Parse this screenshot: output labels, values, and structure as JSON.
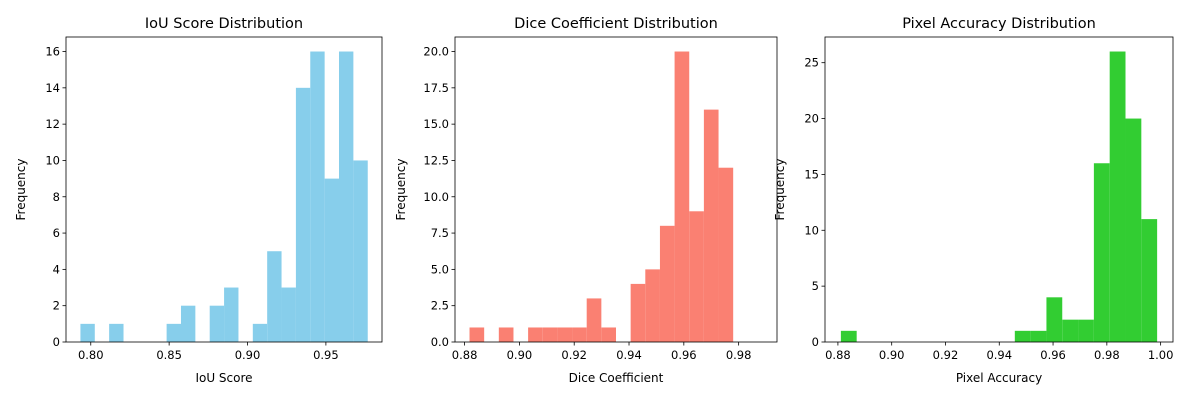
{
  "chart_data": [
    {
      "type": "histogram",
      "title": "IoU Score Distribution",
      "xlabel": "IoU Score",
      "ylabel": "Frequency",
      "color": "#87ceeb",
      "xlim": [
        0.7842,
        0.9858
      ],
      "ylim": [
        0,
        16.8
      ],
      "xticks": [
        "0.80",
        "0.85",
        "0.90",
        "0.95"
      ],
      "xtick_values": [
        0.8,
        0.85,
        0.9,
        0.95
      ],
      "yticks": [
        "0",
        "2",
        "4",
        "6",
        "8",
        "10",
        "12",
        "14",
        "16"
      ],
      "ytick_values": [
        0,
        2,
        4,
        6,
        8,
        10,
        12,
        14,
        16
      ],
      "bin_start": 0.7934,
      "bin_end": 0.9767,
      "counts": [
        1,
        0,
        1,
        0,
        0,
        0,
        1,
        2,
        0,
        2,
        3,
        0,
        1,
        5,
        3,
        14,
        16,
        9,
        16,
        10
      ]
    },
    {
      "type": "histogram",
      "title": "Dice Coefficient Distribution",
      "xlabel": "Dice Coefficient",
      "ylabel": "Frequency",
      "color": "#fa8072",
      "xlim": [
        0.8765,
        0.994
      ],
      "ylim": [
        0,
        21
      ],
      "xticks": [
        "0.88",
        "0.90",
        "0.92",
        "0.94",
        "0.96",
        "0.98"
      ],
      "xtick_values": [
        0.88,
        0.9,
        0.92,
        0.94,
        0.96,
        0.98
      ],
      "yticks": [
        "0.0",
        "2.5",
        "5.0",
        "7.5",
        "10.0",
        "12.5",
        "15.0",
        "17.5",
        "20.0"
      ],
      "ytick_values": [
        0,
        2.5,
        5.0,
        7.5,
        10.0,
        12.5,
        15.0,
        17.5,
        20.0
      ],
      "bin_start": 0.8818,
      "bin_end": 0.9887,
      "counts": [
        1,
        0,
        1,
        0,
        1,
        1,
        1,
        1,
        3,
        1,
        0,
        4,
        5,
        8,
        20,
        9,
        16,
        12,
        0,
        0
      ]
    },
    {
      "type": "histogram",
      "title": "Pixel Accuracy Distribution",
      "xlabel": "Pixel Accuracy",
      "ylabel": "Frequency",
      "color": "#32cd32",
      "xlim": [
        0.8752,
        1.0046
      ],
      "ylim": [
        0,
        27.3
      ],
      "xticks": [
        "0.88",
        "0.90",
        "0.92",
        "0.94",
        "0.96",
        "0.98",
        "1.00"
      ],
      "xtick_values": [
        0.88,
        0.9,
        0.92,
        0.94,
        0.96,
        0.98,
        1.0
      ],
      "yticks": [
        "0",
        "5",
        "10",
        "15",
        "20",
        "25"
      ],
      "ytick_values": [
        0,
        5,
        10,
        15,
        20,
        25
      ],
      "bin_start": 0.8811,
      "bin_end": 0.9987,
      "counts": [
        1,
        0,
        0,
        0,
        0,
        0,
        0,
        0,
        0,
        0,
        0,
        1,
        1,
        4,
        2,
        2,
        16,
        26,
        20,
        11
      ]
    }
  ]
}
